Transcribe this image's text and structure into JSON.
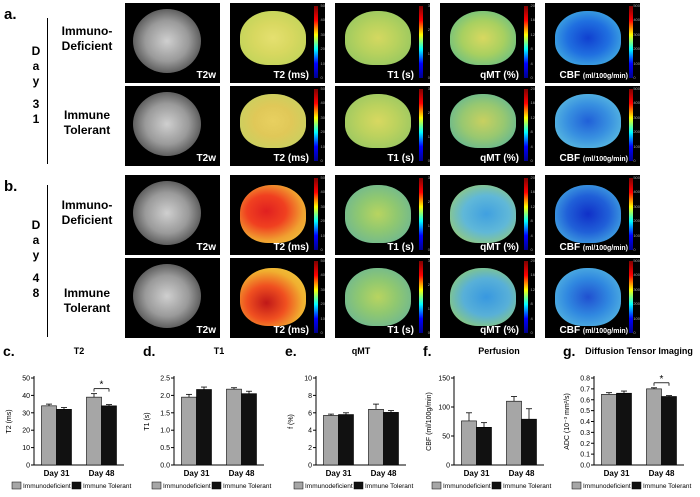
{
  "panel_labels": {
    "a": "a.",
    "b": "b.",
    "c": "c.",
    "d": "d.",
    "e": "e.",
    "f": "f.",
    "g": "g."
  },
  "day_labels": {
    "a": [
      "D",
      "a",
      "y",
      "3",
      "1"
    ],
    "b": [
      "D",
      "a",
      "y",
      "4",
      "8"
    ]
  },
  "groups": {
    "deficient": [
      "Immuno-",
      "Deficient"
    ],
    "tolerant": [
      "Immune",
      "Tolerant"
    ]
  },
  "image_captions": {
    "t2w": "T2w",
    "t2": "T2 (ms)",
    "t1": "T1 (s)",
    "qmt": "qMT (%)",
    "cbf": "CBF",
    "cbf_unit": "(ml/100g/min)"
  },
  "colorbar_ticks": {
    "t2": [
      "50",
      "40",
      "30",
      "20",
      "10",
      "0"
    ],
    "t1": [
      "3",
      "2",
      "1",
      "0"
    ],
    "qmt": [
      "20",
      "16",
      "12",
      "8",
      "4",
      "0"
    ],
    "cbf": [
      "500",
      "400",
      "300",
      "200",
      "100",
      "0"
    ]
  },
  "legend": {
    "immunodeficient": "Immunodeficient",
    "immune_tolerant": "Immune Tolerant"
  },
  "colors": {
    "immunodeficient": "#a6a6a6",
    "immune_tolerant": "#111111"
  },
  "chart_data": [
    {
      "type": "bar",
      "panel": "c.",
      "title": "T2",
      "ylabel": "T2 (ms)",
      "categories": [
        "Day 31",
        "Day 48"
      ],
      "ylim": [
        0,
        50
      ],
      "yticks": [
        "0",
        "10",
        "20",
        "30",
        "40",
        "50"
      ],
      "series": [
        {
          "name": "Immunodeficient",
          "values": [
            34,
            39
          ],
          "errors": [
            1,
            2
          ]
        },
        {
          "name": "Immune Tolerant",
          "values": [
            32,
            34
          ],
          "errors": [
            1,
            0.7
          ]
        }
      ],
      "significance": [
        {
          "category": "Day 48",
          "label": "*"
        }
      ]
    },
    {
      "type": "bar",
      "panel": "d.",
      "title": "T1",
      "ylabel": "T1 (s)",
      "categories": [
        "Day 31",
        "Day 48"
      ],
      "ylim": [
        0,
        2.5
      ],
      "yticks": [
        "0.0",
        "0.5",
        "1.0",
        "1.5",
        "2.0",
        "2.5"
      ],
      "series": [
        {
          "name": "Immunodeficient",
          "values": [
            1.95,
            2.18
          ],
          "errors": [
            0.08,
            0.04
          ]
        },
        {
          "name": "Immune Tolerant",
          "values": [
            2.17,
            2.05
          ],
          "errors": [
            0.07,
            0.07
          ]
        }
      ],
      "significance": []
    },
    {
      "type": "bar",
      "panel": "e.",
      "title": "qMT",
      "ylabel": "f (%)",
      "categories": [
        "Day 31",
        "Day 48"
      ],
      "ylim": [
        0,
        10
      ],
      "yticks": [
        "0",
        "2",
        "4",
        "6",
        "8",
        "10"
      ],
      "series": [
        {
          "name": "Immunodeficient",
          "values": [
            5.7,
            6.4
          ],
          "errors": [
            0.15,
            0.6
          ]
        },
        {
          "name": "Immune Tolerant",
          "values": [
            5.8,
            6.05
          ],
          "errors": [
            0.2,
            0.2
          ]
        }
      ],
      "significance": []
    },
    {
      "type": "bar",
      "panel": "f.",
      "title": "Perfusion",
      "ylabel": "CBF (ml/100g/min)",
      "categories": [
        "Day 31",
        "Day 48"
      ],
      "ylim": [
        0,
        150
      ],
      "yticks": [
        "0",
        "50",
        "100",
        "150"
      ],
      "series": [
        {
          "name": "Immunodeficient",
          "values": [
            76,
            110
          ],
          "errors": [
            14,
            8
          ]
        },
        {
          "name": "Immune Tolerant",
          "values": [
            65,
            79
          ],
          "errors": [
            8,
            18
          ]
        }
      ],
      "significance": []
    },
    {
      "type": "bar",
      "panel": "g.",
      "title": "Diffusion Tensor Imaging",
      "ylabel": "ADC (10⁻³ mm²/s)",
      "categories": [
        "Day 31",
        "Day 48"
      ],
      "ylim": [
        0,
        0.8
      ],
      "yticks": [
        "0.0",
        "0.1",
        "0.2",
        "0.3",
        "0.4",
        "0.5",
        "0.6",
        "0.7",
        "0.8"
      ],
      "series": [
        {
          "name": "Immunodeficient",
          "values": [
            0.65,
            0.7
          ],
          "errors": [
            0.015,
            0.01
          ]
        },
        {
          "name": "Immune Tolerant",
          "values": [
            0.66,
            0.63
          ],
          "errors": [
            0.02,
            0.008
          ]
        }
      ],
      "significance": [
        {
          "category": "Day 48",
          "label": "*"
        }
      ]
    }
  ]
}
